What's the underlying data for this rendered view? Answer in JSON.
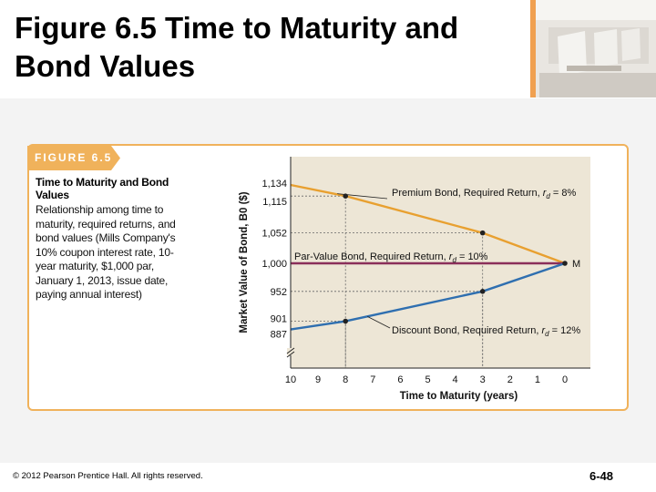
{
  "slide": {
    "title_line1": "Figure 6.5 Time to Maturity and",
    "title_line2": "Bond Values",
    "copyright": "© 2012 Pearson Prentice Hall. All rights reserved.",
    "slide_number": "6-48"
  },
  "figure": {
    "label": "FIGURE 6.5",
    "caption_title": "Time to Maturity and Bond Values",
    "caption_text": "Relationship among time to maturity, required returns, and bond values (Mills Company's 10% coupon interest rate, 10-year maturity, $1,000 par, January 1, 2013, issue date, paying annual interest)"
  },
  "colors": {
    "panel_border": "#f0b25b",
    "plot_bg": "#ede6d6",
    "premium": "#e8a030",
    "par": "#8b2f5a",
    "discount": "#2f6fb0"
  },
  "chart_data": {
    "type": "line",
    "xlabel": "Time to Maturity (years)",
    "ylabel": "Market Value of Bond, B0 ($)",
    "x_ticks": [
      10,
      9,
      8,
      7,
      6,
      5,
      4,
      3,
      2,
      1,
      0
    ],
    "xlim": [
      10,
      0
    ],
    "ylim": [
      800,
      1200
    ],
    "y_tick_labels": [
      {
        "value": 1134,
        "text": "1,134"
      },
      {
        "value": 1115,
        "text": "1,115"
      },
      {
        "value": 1052,
        "text": "1,052"
      },
      {
        "value": 1000,
        "text": "1,000"
      },
      {
        "value": 952,
        "text": "952"
      },
      {
        "value": 901,
        "text": "901"
      },
      {
        "value": 887,
        "text": "887"
      }
    ],
    "series": [
      {
        "name": "Premium Bond, Required Return, rd = 8%",
        "label_main": "Premium Bond, Required Return, ",
        "label_rd": "r",
        "label_sub": "d",
        "label_tail": " = 8%",
        "color_key": "premium",
        "x": [
          10,
          8,
          3,
          0
        ],
        "y": [
          1134,
          1115,
          1052,
          1000
        ],
        "markers": [
          8,
          3
        ]
      },
      {
        "name": "Par-Value Bond, Required Return, rd = 10%",
        "label_main": "Par-Value Bond, Required Return, ",
        "label_rd": "r",
        "label_sub": "d",
        "label_tail": " = 10%",
        "color_key": "par",
        "x": [
          10,
          0
        ],
        "y": [
          1000,
          1000
        ],
        "markers": []
      },
      {
        "name": "Discount Bond, Required Return, rd = 12%",
        "label_main": "Discount Bond, Required Return, ",
        "label_rd": "r",
        "label_sub": "d",
        "label_tail": " = 12%",
        "color_key": "discount",
        "x": [
          10,
          8,
          3,
          0
        ],
        "y": [
          887,
          901,
          952,
          1000
        ],
        "markers": [
          8,
          3
        ]
      }
    ],
    "end_marker_label": "M"
  }
}
